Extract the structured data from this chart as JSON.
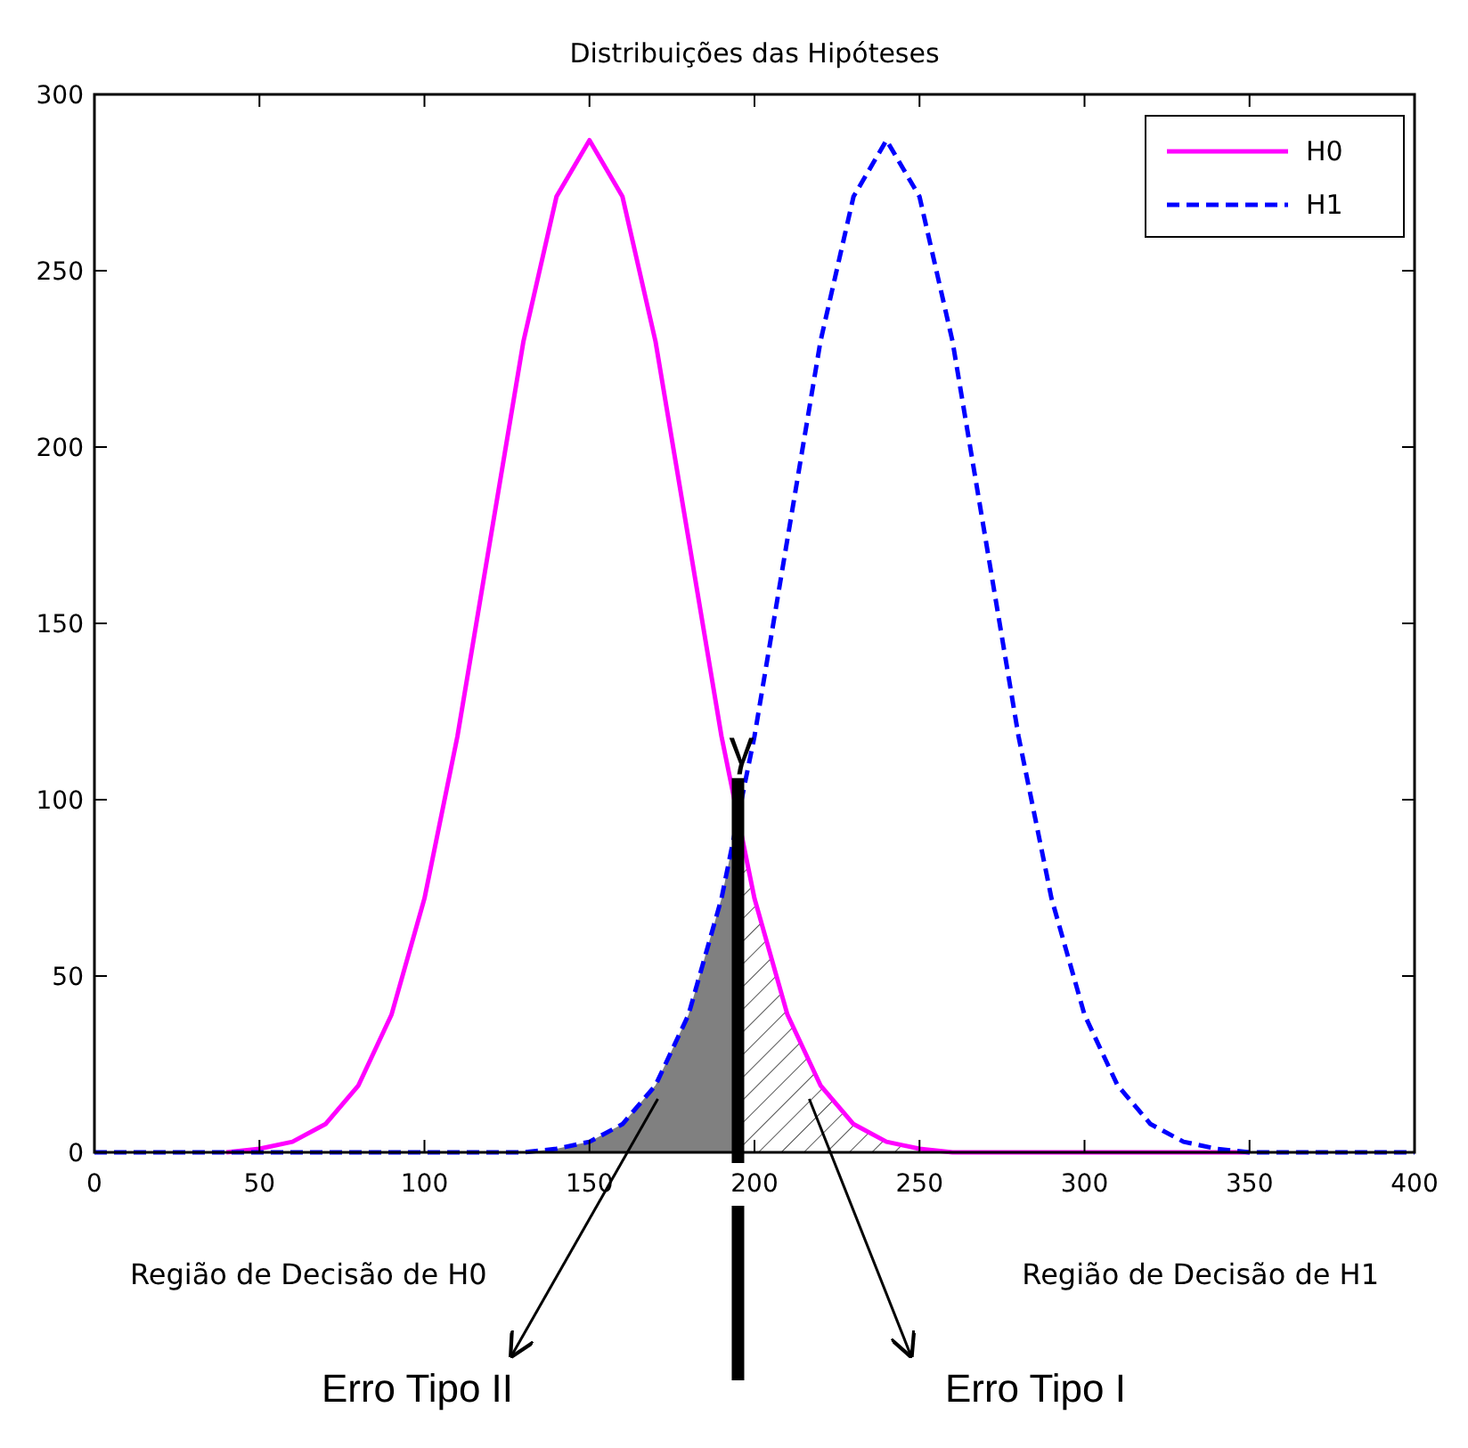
{
  "chart_data": {
    "type": "line",
    "title": "Distribuições das Hipóteses",
    "x": [
      0,
      10,
      20,
      30,
      40,
      50,
      60,
      70,
      80,
      90,
      100,
      110,
      120,
      130,
      140,
      150,
      160,
      170,
      180,
      190,
      200,
      210,
      220,
      230,
      240,
      250,
      260,
      270,
      280,
      290,
      300,
      310,
      320,
      330,
      340,
      350,
      360,
      370,
      380,
      390,
      400
    ],
    "series": [
      {
        "name": "H0",
        "color": "#ff00ff",
        "line_style": "solid",
        "values": [
          null,
          null,
          null,
          null,
          0,
          1,
          3,
          8,
          19,
          39,
          72,
          118,
          174,
          230,
          271,
          287,
          271,
          230,
          174,
          118,
          72,
          39,
          19,
          8,
          3,
          1,
          0,
          0,
          0,
          0,
          0,
          0,
          0,
          0,
          0,
          0,
          null,
          null,
          null,
          null,
          null
        ]
      },
      {
        "name": "H1",
        "color": "#0000ff",
        "line_style": "dashed",
        "values": [
          0,
          0,
          0,
          0,
          0,
          0,
          0,
          0,
          0,
          0,
          0,
          0,
          0,
          0,
          1,
          3,
          8,
          19,
          39,
          72,
          118,
          174,
          230,
          271,
          287,
          271,
          230,
          174,
          118,
          72,
          39,
          19,
          8,
          3,
          1,
          0,
          0,
          0,
          0,
          0,
          0
        ]
      }
    ],
    "xlim": [
      0,
      400
    ],
    "xticks": [
      0,
      50,
      100,
      150,
      200,
      250,
      300,
      350,
      400
    ],
    "ylim": [
      0,
      300
    ],
    "yticks": [
      0,
      50,
      100,
      150,
      200,
      250,
      300
    ],
    "grid": false,
    "legend": "top right",
    "marker": "none",
    "ref_lines": [
      {
        "axis": "x",
        "value": 195,
        "label": "γ",
        "color": "#000000"
      }
    ],
    "annotations": [
      "Região de Decisão de H0",
      "Região de Decisão de H1",
      "Erro Tipo II",
      "Erro Tipo I"
    ]
  }
}
